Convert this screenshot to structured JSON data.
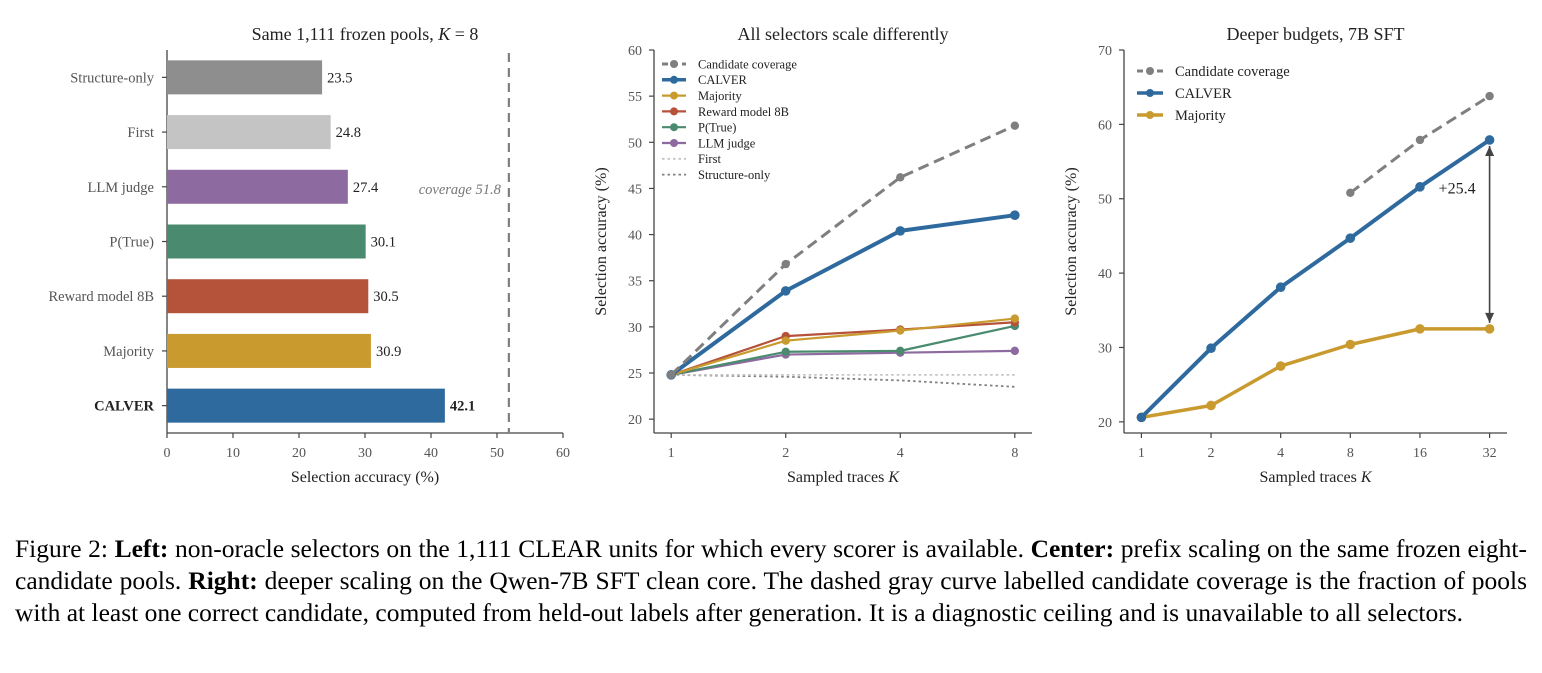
{
  "colors": {
    "axis": "#444444",
    "coverage": "#7f7f7f",
    "calver": "#2e6a9e",
    "majority": "#c99a2e",
    "reward": "#b5533a",
    "ptrue": "#4a8a6e",
    "llm_judge": "#8d6a9f",
    "first": "#c4c4c4",
    "structure_only": "#8e8e8e",
    "dotted": "#808080"
  },
  "chart_data": [
    {
      "id": "left",
      "type": "bar",
      "orientation": "horizontal",
      "title": "Same 1,111 frozen pools, K = 8",
      "xlabel": "Selection accuracy (%)",
      "ylabel": "",
      "xlim": [
        0,
        60
      ],
      "xticks": [
        0,
        10,
        20,
        30,
        40,
        50,
        60
      ],
      "categories": [
        "Structure-only",
        "First",
        "LLM judge",
        "P(True)",
        "Reward model 8B",
        "Majority",
        "CALVER"
      ],
      "values": [
        23.5,
        24.8,
        27.4,
        30.1,
        30.5,
        30.9,
        42.1
      ],
      "value_labels": [
        "23.5",
        "24.8",
        "27.4",
        "30.1",
        "30.5",
        "30.9",
        "42.1"
      ],
      "bar_colors": [
        "#8e8e8e",
        "#c4c4c4",
        "#8d6a9f",
        "#4a8a6e",
        "#b5533a",
        "#c99a2e",
        "#2e6a9e"
      ],
      "bold_category": "CALVER",
      "reference_line": {
        "x": 51.8,
        "style": "dashed",
        "label": "coverage 51.8"
      },
      "grid": false
    },
    {
      "id": "center",
      "type": "line",
      "title": "All selectors scale differently",
      "xlabel": "Sampled traces K",
      "ylabel": "Selection accuracy (%)",
      "x": [
        1,
        2,
        4,
        8
      ],
      "x_scale": "log2",
      "ylim": [
        18.5,
        60
      ],
      "yticks": [
        20,
        25,
        30,
        35,
        40,
        45,
        50,
        55,
        60
      ],
      "legend": "top-left",
      "series": [
        {
          "name": "Candidate coverage",
          "values": [
            24.8,
            36.8,
            46.2,
            51.8
          ],
          "color": "#7f7f7f",
          "style": "dashed",
          "marker": true,
          "width": 3
        },
        {
          "name": "CALVER",
          "values": [
            24.8,
            33.9,
            40.4,
            42.1
          ],
          "color": "#2e6a9e",
          "style": "solid",
          "marker": true,
          "width": 4
        },
        {
          "name": "Majority",
          "values": [
            24.8,
            28.5,
            29.6,
            30.9
          ],
          "color": "#c99a2e",
          "style": "solid",
          "marker": true,
          "width": 2.2
        },
        {
          "name": "Reward model 8B",
          "values": [
            24.8,
            29.0,
            29.7,
            30.5
          ],
          "color": "#b5533a",
          "style": "solid",
          "marker": true,
          "width": 2.2
        },
        {
          "name": "P(True)",
          "values": [
            24.8,
            27.3,
            27.4,
            30.1
          ],
          "color": "#4a8a6e",
          "style": "solid",
          "marker": true,
          "width": 2.2
        },
        {
          "name": "LLM judge",
          "values": [
            24.8,
            27.0,
            27.2,
            27.4
          ],
          "color": "#8d6a9f",
          "style": "solid",
          "marker": true,
          "width": 2.2
        },
        {
          "name": "First",
          "values": [
            24.8,
            24.8,
            24.8,
            24.8
          ],
          "color": "#c4c4c4",
          "style": "dotted",
          "marker": false,
          "width": 1.8
        },
        {
          "name": "Structure-only",
          "values": [
            24.8,
            24.6,
            24.2,
            23.5
          ],
          "color": "#808080",
          "style": "dotted",
          "marker": false,
          "width": 1.8
        }
      ],
      "grid": false
    },
    {
      "id": "right",
      "type": "line",
      "title": "Deeper budgets, 7B SFT",
      "xlabel": "Sampled traces K",
      "ylabel": "Selection accuracy (%)",
      "x": [
        1,
        2,
        4,
        8,
        16,
        32
      ],
      "x_scale": "log2",
      "ylim": [
        18.5,
        70
      ],
      "yticks": [
        20,
        30,
        40,
        50,
        60,
        70
      ],
      "legend": "top-left",
      "series": [
        {
          "name": "Candidate coverage",
          "x": [
            8,
            16,
            32
          ],
          "values": [
            50.8,
            57.9,
            63.8
          ],
          "color": "#7f7f7f",
          "style": "dashed",
          "marker": true,
          "width": 3
        },
        {
          "name": "CALVER",
          "values": [
            20.6,
            29.9,
            38.1,
            44.7,
            51.6,
            57.9
          ],
          "color": "#2e6a9e",
          "style": "solid",
          "marker": true,
          "width": 4
        },
        {
          "name": "Majority",
          "values": [
            20.6,
            22.2,
            27.5,
            30.4,
            32.5,
            32.5
          ],
          "color": "#c99a2e",
          "style": "solid",
          "marker": true,
          "width": 3.5
        }
      ],
      "annotation": {
        "text": "+25.4",
        "x": 32,
        "from": 32.5,
        "to": 57.9
      },
      "grid": false
    }
  ],
  "caption": {
    "figure_label": "Figure 2: ",
    "left_heading": "Left:",
    "left_text": " non-oracle selectors on the 1,111 CLEAR units for which every scorer is available. ",
    "center_heading": "Center:",
    "center_text": " prefix scaling on the same frozen eight-candidate pools. ",
    "right_heading": "Right:",
    "right_text": " deeper scaling on the Qwen-7B SFT clean core. The dashed gray curve labelled candidate coverage is the fraction of pools with at least one correct candidate, computed from held-out labels after generation. It is a diagnostic ceiling and is unavailable to all selectors."
  }
}
